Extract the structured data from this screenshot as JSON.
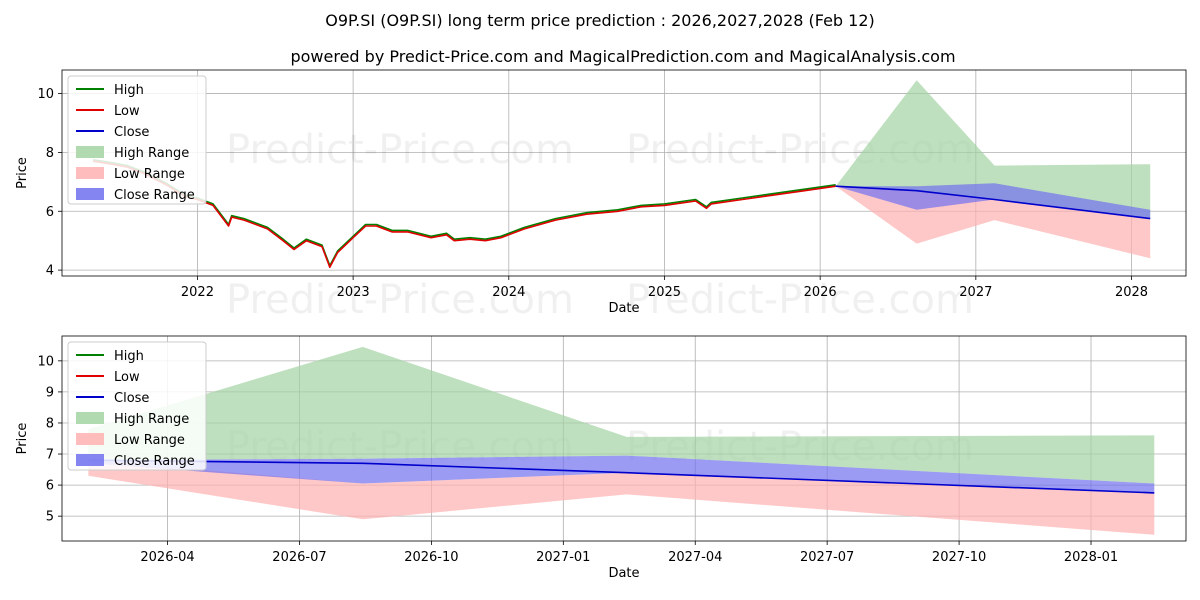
{
  "title": "O9P.SI (O9P.SI) long term price prediction : 2026,2027,2028 (Feb 12)",
  "subtitle": "powered by Predict-Price.com and MagicalPrediction.com and MagicalAnalysis.com",
  "watermark": "Predict-Price.com",
  "colors": {
    "high": "#008000",
    "low": "#e00000",
    "close": "#0000cc",
    "high_range": "#a3d3a3",
    "low_range": "#ffb0b0",
    "close_range": "#7070f0",
    "grid": "#b0b0b0"
  },
  "chart_data": [
    {
      "type": "line",
      "panel": "top",
      "xlabel": "Date",
      "ylabel": "Price",
      "xlim": [
        2021.13,
        2028.35
      ],
      "ylim": [
        3.8,
        10.8
      ],
      "x_ticks": [
        2022,
        2023,
        2024,
        2025,
        2026,
        2027,
        2028
      ],
      "x_tick_labels": [
        "2022",
        "2023",
        "2024",
        "2025",
        "2026",
        "2027",
        "2028"
      ],
      "y_ticks": [
        4,
        6,
        8,
        10
      ],
      "y_tick_labels": [
        "4",
        "6",
        "8",
        "10"
      ],
      "grid": true,
      "legend": {
        "position": "top-left",
        "entries": [
          "High",
          "Low",
          "Close",
          "High Range",
          "Low Range",
          "Close Range"
        ]
      },
      "history": {
        "x": [
          2021.33,
          2021.45,
          2021.55,
          2021.65,
          2021.8,
          2021.92,
          2022.0,
          2022.1,
          2022.2,
          2022.22,
          2022.3,
          2022.45,
          2022.55,
          2022.62,
          2022.7,
          2022.8,
          2022.85,
          2022.9,
          2023.0,
          2023.08,
          2023.15,
          2023.25,
          2023.35,
          2023.5,
          2023.6,
          2023.65,
          2023.75,
          2023.85,
          2023.95,
          2024.1,
          2024.3,
          2024.5,
          2024.7,
          2024.85,
          2025.0,
          2025.2,
          2025.27,
          2025.3,
          2025.5,
          2025.7,
          2025.9,
          2026.1
        ],
        "values": [
          7.7,
          7.6,
          7.5,
          7.3,
          6.9,
          6.5,
          6.4,
          6.2,
          5.5,
          5.8,
          5.7,
          5.4,
          5.0,
          4.7,
          5.0,
          4.8,
          4.1,
          4.6,
          5.1,
          5.5,
          5.5,
          5.3,
          5.3,
          5.1,
          5.2,
          5.0,
          5.05,
          5.0,
          5.1,
          5.4,
          5.7,
          5.9,
          6.0,
          6.15,
          6.2,
          6.35,
          6.1,
          6.25,
          6.4,
          6.55,
          6.7,
          6.85
        ]
      },
      "forecast": {
        "x": [
          2026.1,
          2026.62,
          2027.12,
          2028.12
        ],
        "close": [
          6.85,
          6.7,
          6.4,
          5.75
        ],
        "high_range": {
          "upper": [
            6.85,
            10.45,
            7.55,
            7.6
          ],
          "lower": [
            6.85,
            6.7,
            6.4,
            5.75
          ]
        },
        "low_range": {
          "upper": [
            6.85,
            6.7,
            6.4,
            5.75
          ],
          "lower": [
            6.85,
            4.9,
            5.7,
            4.4
          ]
        },
        "close_range": {
          "upper": [
            6.85,
            6.85,
            6.95,
            6.05
          ],
          "lower": [
            6.85,
            6.05,
            6.4,
            5.75
          ]
        }
      }
    },
    {
      "type": "line",
      "panel": "bottom",
      "xlabel": "Date",
      "ylabel": "Price",
      "xlim": [
        2026.05,
        2028.18
      ],
      "ylim": [
        4.2,
        10.8
      ],
      "x_ticks": [
        2026.25,
        2026.5,
        2026.75,
        2027.0,
        2027.25,
        2027.5,
        2027.75,
        2028.0
      ],
      "x_tick_labels": [
        "2026-04",
        "2026-07",
        "2026-10",
        "2027-01",
        "2027-04",
        "2027-07",
        "2027-10",
        "2028-01"
      ],
      "y_ticks": [
        5,
        6,
        7,
        8,
        9,
        10
      ],
      "y_tick_labels": [
        "5",
        "6",
        "7",
        "8",
        "9",
        "10"
      ],
      "grid": true,
      "legend": {
        "position": "top-left",
        "entries": [
          "High",
          "Low",
          "Close",
          "High Range",
          "Low Range",
          "Close Range"
        ]
      },
      "forecast": {
        "x": [
          2026.1,
          2026.62,
          2027.12,
          2028.12
        ],
        "close": [
          6.8,
          6.7,
          6.4,
          5.75
        ],
        "high_range": {
          "upper": [
            7.8,
            10.45,
            7.55,
            7.6
          ],
          "lower": [
            6.8,
            6.85,
            6.95,
            6.05
          ]
        },
        "low_range": {
          "upper": [
            6.8,
            6.05,
            6.4,
            5.75
          ],
          "lower": [
            6.3,
            4.9,
            5.7,
            4.4
          ]
        },
        "close_range": {
          "upper": [
            6.8,
            6.85,
            6.95,
            6.05
          ],
          "lower": [
            6.7,
            6.05,
            6.4,
            5.75
          ]
        }
      }
    }
  ]
}
